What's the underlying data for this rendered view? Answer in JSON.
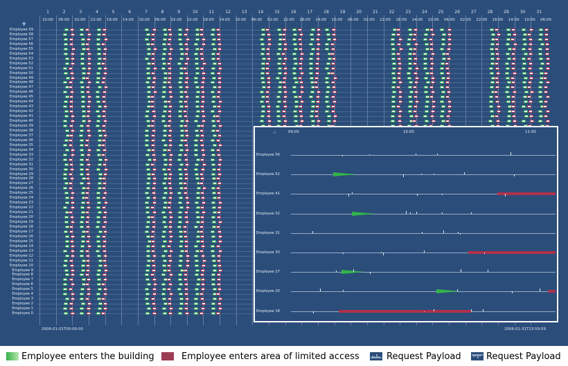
{
  "days": [
    "1",
    "2",
    "3",
    "4",
    "5",
    "6",
    "7",
    "8",
    "9",
    "10",
    "11",
    "12",
    "13",
    "14",
    "15",
    "16",
    "17",
    "18",
    "19",
    "20",
    "21",
    "22",
    "23",
    "24",
    "25",
    "26",
    "27",
    "28",
    "29",
    "30",
    "31"
  ],
  "time_ticks": [
    "10:00",
    "06:00",
    "02:00",
    "22:00",
    "18:00",
    "14:00",
    "10:00",
    "06:00",
    "02:00",
    "22:00",
    "18:00",
    "14:00",
    "10:00",
    "06:00",
    "02:00",
    "22:00",
    "18:00",
    "14:00",
    "10:00",
    "06:00",
    "02:00",
    "22:00",
    "18:00",
    "14:00",
    "10:00",
    "06:00",
    "02:00",
    "22:00",
    "18:00",
    "14:00",
    "10:00",
    "06:00",
    "02:00",
    "22:00",
    "18:00",
    "14:00",
    "10:00",
    "06:00",
    "02:00",
    "22:00",
    "18:00",
    "14:00",
    "10:00",
    "06:00",
    "02:00",
    "22:00",
    "18:00",
    "14:00",
    "10:00",
    "06:00",
    "02:00",
    "22:00",
    "18:00",
    "14:00",
    "10:00",
    "06:00",
    "02:00",
    "22:00",
    "18:00",
    "14:00",
    "10:00",
    "06:00",
    "02:00"
  ],
  "employees": [
    "Employee 59",
    "Employee 58",
    "Employee 57",
    "Employee 56",
    "Employee 55",
    "Employee 54",
    "Employee 53",
    "Employee 52",
    "Employee 51",
    "Employee 50",
    "Employee 49",
    "Employee 48",
    "Employee 47",
    "Employee 46",
    "Employee 45",
    "Employee 44",
    "Employee 43",
    "Employee 42",
    "Employee 41",
    "Employee 40",
    "Employee 39",
    "Employee 38",
    "Employee 37",
    "Employee 36",
    "Employee 35",
    "Employee 34",
    "Employee 33",
    "Employee 32",
    "Employee 31",
    "Employee 30",
    "Employee 29",
    "Employee 28",
    "Employee 27",
    "Employee 26",
    "Employee 25",
    "Employee 24",
    "Employee 23",
    "Employee 22",
    "Employee 21",
    "Employee 20",
    "Employee 19",
    "Employee 18",
    "Employee 17",
    "Employee 16",
    "Employee 15",
    "Employee 14",
    "Employee 13",
    "Employee 12",
    "Employee 11",
    "Employee 10",
    "Employee 9",
    "Employee 8",
    "Employee 7",
    "Employee 6",
    "Employee 5",
    "Employee 4",
    "Employee 3",
    "Employee 2",
    "Employee 1",
    "Employee 0"
  ],
  "start_stamp": "2006-01-01T00:00:00",
  "end_stamp": "2006-01-31T23:59:59",
  "zoom": {
    "ticks": [
      "09:00",
      "10:00",
      "11:00"
    ],
    "rows": [
      {
        "label": "Employee 56",
        "green": null,
        "red": null
      },
      {
        "label": "Employee 52",
        "green": 0.16,
        "red": null
      },
      {
        "label": "Employee 41",
        "green": null,
        "red": [
          0.78,
          1.0
        ]
      },
      {
        "label": "Employee 32",
        "green": 0.23,
        "red": null
      },
      {
        "label": "Employee 31",
        "green": null,
        "red": null
      },
      {
        "label": "Employee 30",
        "green": null,
        "red": [
          0.67,
          1.0
        ]
      },
      {
        "label": "Employee 27",
        "green": 0.19,
        "red": null
      },
      {
        "label": "Employee 20",
        "green": 0.55,
        "red": [
          0.97,
          1.0
        ]
      },
      {
        "label": "Employee 18",
        "green": null,
        "red": [
          0.18,
          0.68
        ]
      }
    ]
  },
  "legend": {
    "enters_building": "Employee enters the building",
    "limited_access": "Employee enters area of limited access",
    "request_payload_1": "Request Payload",
    "request_payload_2": "Request Payload"
  },
  "colors": {
    "background": "#2b4d7a",
    "building": "#34b34a",
    "limited": "#b0304a",
    "payload": "#e6edf6"
  }
}
